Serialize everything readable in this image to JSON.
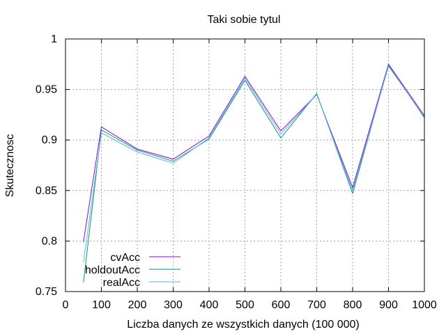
{
  "chart_data": {
    "type": "line",
    "title": "Taki sobie tytul",
    "xlabel": "Liczba danych ze wszystkich danych (100 000)",
    "ylabel": "Skutecznosc",
    "xlim": [
      0,
      1000
    ],
    "ylim": [
      0.75,
      1
    ],
    "xticks": [
      0,
      100,
      200,
      300,
      400,
      500,
      600,
      700,
      800,
      900,
      1000
    ],
    "yticks": [
      0.75,
      0.8,
      0.85,
      0.9,
      0.95,
      1
    ],
    "ytick_labels": [
      "0.75",
      "0.8",
      "0.85",
      "0.9",
      "0.95",
      "1"
    ],
    "grid": true,
    "legend_position": "bottom-left",
    "x": [
      50,
      100,
      200,
      300,
      400,
      500,
      600,
      700,
      800,
      900,
      1000
    ],
    "series": [
      {
        "name": "cvAcc",
        "color": "#9400d3",
        "values": [
          0.799,
          0.913,
          0.891,
          0.881,
          0.904,
          0.963,
          0.909,
          0.945,
          0.853,
          0.975,
          0.924
        ]
      },
      {
        "name": "holdoutAcc",
        "color": "#009e73",
        "values": [
          0.759,
          0.91,
          0.89,
          0.879,
          0.901,
          0.959,
          0.902,
          0.946,
          0.847,
          0.974,
          0.922
        ]
      },
      {
        "name": "realAcc",
        "color": "#56b4e9",
        "values": [
          0.779,
          0.907,
          0.888,
          0.877,
          0.902,
          0.961,
          0.906,
          0.945,
          0.85,
          0.973,
          0.923
        ]
      }
    ]
  }
}
